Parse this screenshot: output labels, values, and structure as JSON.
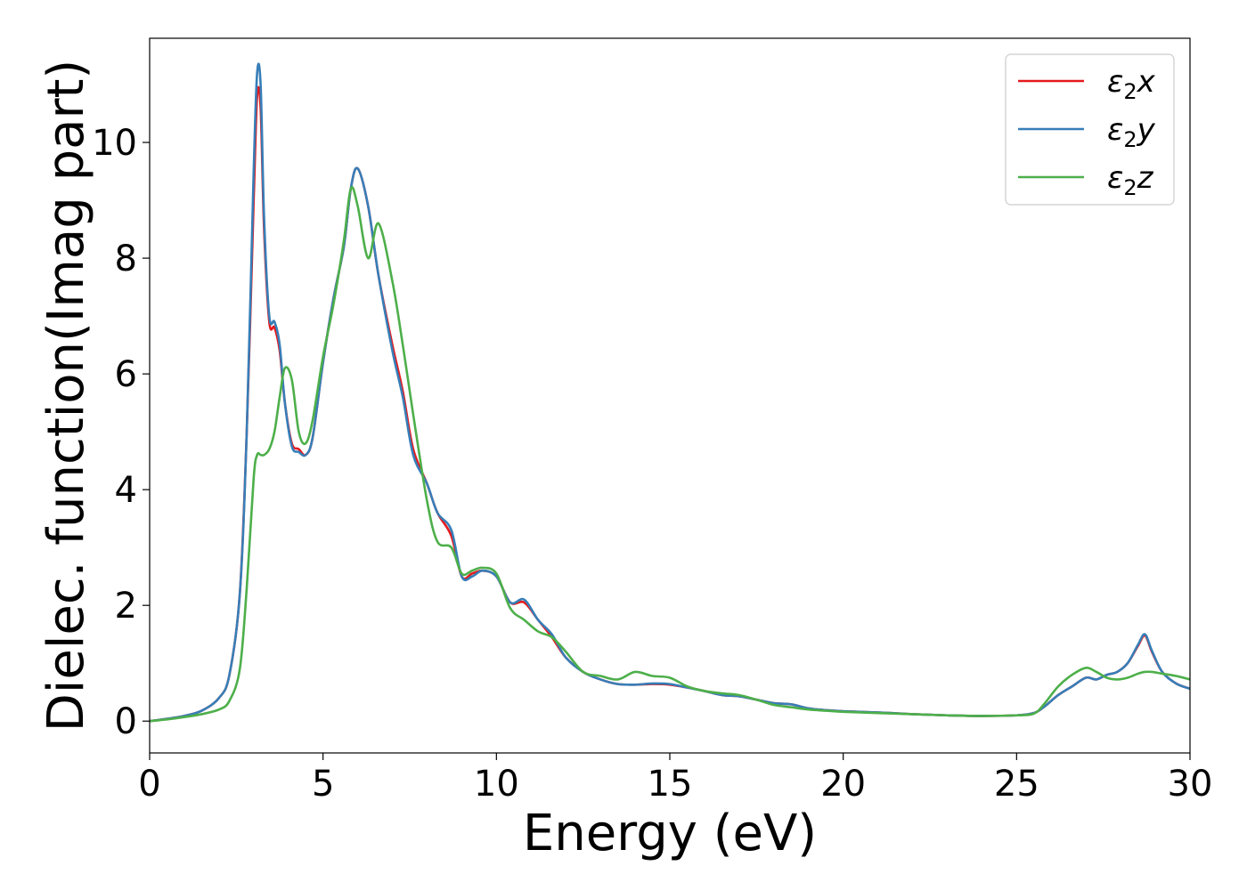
{
  "chart_data": {
    "type": "line",
    "xlabel": "Energy (eV)",
    "ylabel": "Dielec. function(Imag part)",
    "xlim": [
      0,
      30
    ],
    "ylim": [
      -0.55,
      11.8
    ],
    "xticks": [
      0,
      5,
      10,
      15,
      20,
      25,
      30
    ],
    "yticks": [
      0,
      2,
      4,
      6,
      8,
      10
    ],
    "grid": false,
    "legend_position": "top-right",
    "series": [
      {
        "name": "ε2x",
        "legend": {
          "base": "ε",
          "sub": "2",
          "suffix": "x"
        },
        "color": "#e41a1c",
        "x": [
          0,
          0.5,
          1,
          1.5,
          2,
          2.3,
          2.6,
          2.8,
          3.0,
          3.1,
          3.2,
          3.3,
          3.45,
          3.6,
          3.75,
          3.9,
          4.1,
          4.3,
          4.5,
          4.7,
          5.0,
          5.3,
          5.6,
          5.8,
          6.0,
          6.3,
          6.6,
          7.0,
          7.3,
          7.6,
          8.0,
          8.3,
          8.7,
          9.0,
          9.3,
          9.6,
          10.0,
          10.4,
          10.8,
          11.2,
          11.6,
          12.0,
          12.5,
          13.0,
          13.5,
          14.0,
          14.5,
          15.0,
          15.5,
          16.0,
          16.5,
          17.0,
          17.5,
          18.0,
          18.5,
          19.0,
          19.5,
          20.0,
          21.0,
          22.0,
          23.0,
          24.0,
          25.0,
          25.5,
          25.8,
          26.2,
          26.6,
          27.0,
          27.3,
          27.6,
          27.9,
          28.2,
          28.5,
          28.7,
          28.9,
          29.2,
          29.6,
          30.0
        ],
        "values": [
          0,
          0.04,
          0.09,
          0.18,
          0.4,
          0.8,
          2.2,
          5.0,
          9.0,
          10.8,
          10.6,
          8.5,
          6.9,
          6.8,
          6.4,
          5.5,
          4.8,
          4.7,
          4.6,
          4.9,
          6.2,
          7.3,
          8.2,
          9.2,
          9.55,
          8.9,
          7.7,
          6.5,
          5.7,
          4.7,
          4.1,
          3.6,
          3.2,
          2.5,
          2.55,
          2.6,
          2.5,
          2.05,
          2.05,
          1.75,
          1.45,
          1.1,
          0.85,
          0.72,
          0.64,
          0.63,
          0.64,
          0.63,
          0.58,
          0.52,
          0.45,
          0.43,
          0.37,
          0.31,
          0.29,
          0.22,
          0.19,
          0.17,
          0.15,
          0.12,
          0.1,
          0.09,
          0.1,
          0.14,
          0.25,
          0.45,
          0.6,
          0.75,
          0.72,
          0.8,
          0.85,
          1.0,
          1.3,
          1.48,
          1.2,
          0.85,
          0.65,
          0.56
        ]
      },
      {
        "name": "ε2y",
        "legend": {
          "base": "ε",
          "sub": "2",
          "suffix": "y"
        },
        "color": "#377eb8",
        "x": [
          0,
          0.5,
          1,
          1.5,
          2,
          2.3,
          2.6,
          2.8,
          3.0,
          3.1,
          3.2,
          3.3,
          3.45,
          3.6,
          3.75,
          3.9,
          4.1,
          4.3,
          4.5,
          4.7,
          5.0,
          5.3,
          5.6,
          5.8,
          6.0,
          6.3,
          6.6,
          7.0,
          7.3,
          7.6,
          8.0,
          8.3,
          8.7,
          9.0,
          9.3,
          9.6,
          10.0,
          10.4,
          10.8,
          11.2,
          11.6,
          12.0,
          12.5,
          13.0,
          13.5,
          14.0,
          14.5,
          15.0,
          15.5,
          16.0,
          16.5,
          17.0,
          17.5,
          18.0,
          18.5,
          19.0,
          19.5,
          20.0,
          21.0,
          22.0,
          23.0,
          24.0,
          25.0,
          25.5,
          25.8,
          26.2,
          26.6,
          27.0,
          27.3,
          27.6,
          27.9,
          28.2,
          28.5,
          28.7,
          28.9,
          29.2,
          29.6,
          30.0
        ],
        "values": [
          0,
          0.04,
          0.09,
          0.18,
          0.4,
          0.8,
          2.2,
          5.0,
          9.5,
          11.2,
          11.0,
          8.7,
          7.0,
          6.9,
          6.5,
          5.5,
          4.75,
          4.65,
          4.6,
          4.9,
          6.2,
          7.3,
          8.2,
          9.2,
          9.55,
          8.9,
          7.7,
          6.4,
          5.6,
          4.6,
          4.1,
          3.6,
          3.3,
          2.5,
          2.5,
          2.6,
          2.5,
          2.05,
          2.1,
          1.75,
          1.5,
          1.1,
          0.85,
          0.72,
          0.64,
          0.63,
          0.65,
          0.64,
          0.58,
          0.52,
          0.45,
          0.43,
          0.37,
          0.31,
          0.29,
          0.22,
          0.19,
          0.17,
          0.15,
          0.12,
          0.1,
          0.09,
          0.1,
          0.14,
          0.25,
          0.45,
          0.6,
          0.75,
          0.72,
          0.8,
          0.85,
          1.0,
          1.32,
          1.5,
          1.22,
          0.85,
          0.65,
          0.56
        ]
      },
      {
        "name": "ε2z",
        "legend": {
          "base": "ε",
          "sub": "2",
          "suffix": "z"
        },
        "color": "#4daf4a",
        "x": [
          0,
          0.5,
          1,
          1.5,
          2,
          2.3,
          2.6,
          2.8,
          3.0,
          3.1,
          3.2,
          3.3,
          3.45,
          3.6,
          3.75,
          3.9,
          4.1,
          4.3,
          4.5,
          4.7,
          5.0,
          5.3,
          5.6,
          5.8,
          6.0,
          6.3,
          6.6,
          7.0,
          7.3,
          7.6,
          8.0,
          8.3,
          8.7,
          9.0,
          9.3,
          9.6,
          10.0,
          10.4,
          10.8,
          11.2,
          11.6,
          12.0,
          12.5,
          13.0,
          13.5,
          14.0,
          14.5,
          15.0,
          15.5,
          16.0,
          16.5,
          17.0,
          17.5,
          18.0,
          18.5,
          19.0,
          19.5,
          20.0,
          21.0,
          22.0,
          23.0,
          24.0,
          25.0,
          25.5,
          25.8,
          26.2,
          26.6,
          27.0,
          27.3,
          27.6,
          27.9,
          28.2,
          28.5,
          28.7,
          28.9,
          29.2,
          29.6,
          30.0
        ],
        "values": [
          0,
          0.03,
          0.07,
          0.12,
          0.2,
          0.35,
          0.9,
          2.3,
          4.2,
          4.6,
          4.6,
          4.6,
          4.7,
          5.0,
          5.6,
          6.1,
          5.9,
          5.0,
          4.8,
          5.2,
          6.3,
          7.2,
          8.3,
          9.2,
          8.9,
          8.0,
          8.6,
          7.6,
          6.5,
          5.3,
          3.8,
          3.1,
          3.0,
          2.55,
          2.6,
          2.65,
          2.55,
          1.95,
          1.75,
          1.55,
          1.45,
          1.2,
          0.85,
          0.78,
          0.72,
          0.85,
          0.78,
          0.75,
          0.6,
          0.52,
          0.48,
          0.45,
          0.37,
          0.28,
          0.24,
          0.2,
          0.18,
          0.16,
          0.14,
          0.12,
          0.1,
          0.09,
          0.1,
          0.13,
          0.3,
          0.6,
          0.8,
          0.92,
          0.85,
          0.75,
          0.72,
          0.75,
          0.82,
          0.85,
          0.85,
          0.82,
          0.78,
          0.72
        ]
      }
    ]
  }
}
